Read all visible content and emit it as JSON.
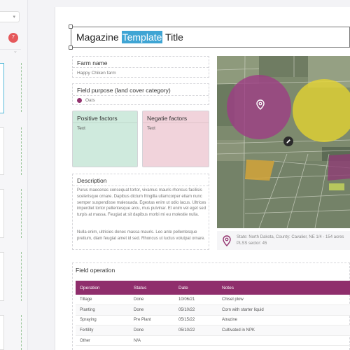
{
  "sidebar": {
    "badge_count": "7"
  },
  "document": {
    "title_before": "Magazine ",
    "title_highlight": "Template",
    "title_after": " Title"
  },
  "farm": {
    "label": "Farm name",
    "value": "Happy Chiken farm"
  },
  "field_purpose": {
    "label": "Field purpose (land cover category)",
    "value": "Oats",
    "color": "#93336f"
  },
  "positive": {
    "label": "Positive factors",
    "text": "Text",
    "color": "#cfeadd"
  },
  "negative": {
    "label": "Negatie factors",
    "text": "Text",
    "color": "#f1d3db"
  },
  "description": {
    "label": "Description",
    "para1": "Purus maecenas consequat tortor, vivamus mauris rhoncus facilisis scelerisque ornare. Dapibus dictum fringilla ullamcorper etiam nunc semper suspendisse malesuada. Egestas enim ut odio lacus. Ultrices imperdiet tortor pellentesque arcu, mus pulvinar. Et enim vel eget sed turpis at massa. Feugiat at sit dapibus morbi mi eu molestie nulla.",
    "para2": "Nulla enim, ultricies donec massa mauris. Leo ante pellentesque pretium, diam feugiat amet id sed. Rhoncus ut luctus volutpat ornare."
  },
  "map": {
    "location_line1": "State: North Dakota, County: Cavalier, NE 1/4 - 154 acres",
    "location_line2": "PLSS sector: 45"
  },
  "operations": {
    "title": "Field operation",
    "header_color": "#8f2e6c",
    "columns": [
      "Operation",
      "Status",
      "Date",
      "Notes"
    ],
    "rows": [
      [
        "Tillage",
        "Done",
        "10/06/21",
        "Chisel plow"
      ],
      [
        "Planting",
        "Done",
        "05/10/22",
        "Corn with starter liquid"
      ],
      [
        "Spraying",
        "Pre Plant",
        "05/15/22",
        "Atrazine"
      ],
      [
        "Fertility",
        "Done",
        "05/10/22",
        "Cultivated in NPK"
      ],
      [
        "Other",
        "N/A",
        "",
        ""
      ]
    ]
  }
}
